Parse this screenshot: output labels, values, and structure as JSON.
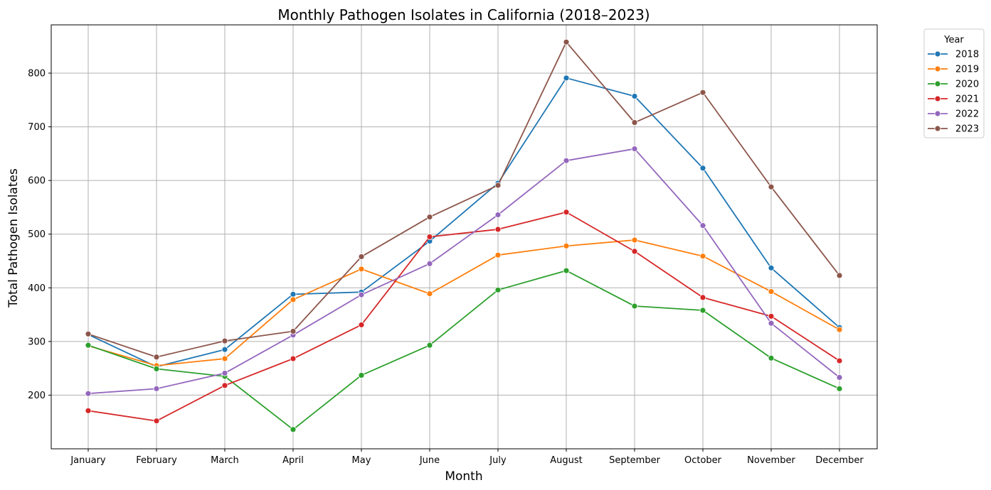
{
  "chart_data": {
    "type": "line",
    "title": "Monthly Pathogen Isolates in California (2018–2023)",
    "xlabel": "Month",
    "ylabel": "Total Pathogen Isolates",
    "categories": [
      "January",
      "February",
      "March",
      "April",
      "May",
      "June",
      "July",
      "August",
      "September",
      "October",
      "November",
      "December"
    ],
    "ylim": [
      100,
      890
    ],
    "yticks": [
      "200",
      "300",
      "400",
      "500",
      "600",
      "700",
      "800"
    ],
    "grid": true,
    "legend": {
      "title": "Year",
      "placement": "outside-top-right"
    },
    "series": [
      {
        "name": "2018",
        "color": "#1f77b4",
        "values": [
          313,
          253,
          285,
          388,
          392,
          487,
          595,
          791,
          757,
          623,
          437,
          326
        ]
      },
      {
        "name": "2019",
        "color": "#ff7f0e",
        "values": [
          292,
          255,
          268,
          378,
          435,
          389,
          461,
          478,
          489,
          459,
          393,
          322
        ]
      },
      {
        "name": "2020",
        "color": "#2ca02c",
        "values": [
          293,
          249,
          235,
          136,
          237,
          293,
          396,
          432,
          366,
          358,
          269,
          212
        ]
      },
      {
        "name": "2021",
        "color": "#d62728",
        "values": [
          171,
          152,
          218,
          268,
          331,
          495,
          509,
          541,
          468,
          382,
          347,
          264
        ]
      },
      {
        "name": "2022",
        "color": "#9467bd",
        "values": [
          203,
          212,
          241,
          312,
          387,
          445,
          536,
          637,
          659,
          516,
          334,
          233
        ]
      },
      {
        "name": "2023",
        "color": "#8c564b",
        "values": [
          314,
          271,
          301,
          319,
          458,
          532,
          591,
          858,
          708,
          764,
          588,
          423
        ]
      }
    ]
  }
}
